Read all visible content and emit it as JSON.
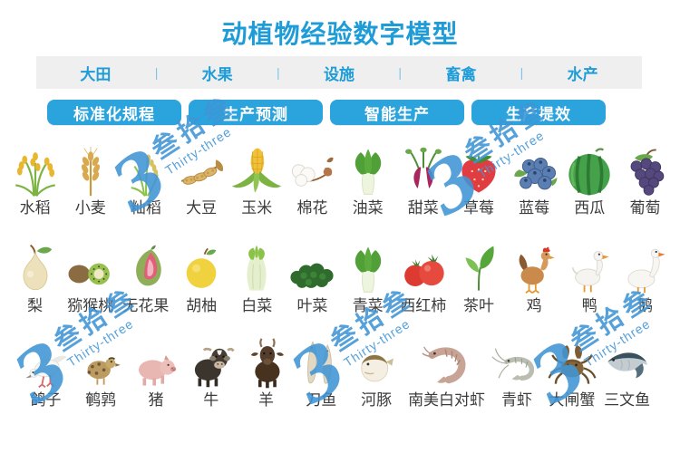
{
  "title": "动植物经验数字模型",
  "nav": {
    "divider": "|",
    "items": [
      "大田",
      "水果",
      "设施",
      "畜禽",
      "水产"
    ]
  },
  "buttons": [
    "标准化规程",
    "生产预测",
    "智能生产",
    "生产提效"
  ],
  "watermark": {
    "logo": "3",
    "text_cn": "叁拾叁",
    "text_en": "Thirty-three"
  },
  "rows": [
    {
      "items": [
        {
          "label": "水稻",
          "icon": "rice"
        },
        {
          "label": "小麦",
          "icon": "wheat"
        },
        {
          "label": "籼稻",
          "icon": "indica-rice"
        },
        {
          "label": "大豆",
          "icon": "soybean"
        },
        {
          "label": "玉米",
          "icon": "corn"
        },
        {
          "label": "棉花",
          "icon": "cotton"
        },
        {
          "label": "油菜",
          "icon": "bokchoy"
        },
        {
          "label": "甜菜",
          "icon": "beet"
        },
        {
          "label": "草莓",
          "icon": "strawberry"
        },
        {
          "label": "蓝莓",
          "icon": "blueberry"
        },
        {
          "label": "西瓜",
          "icon": "watermelon"
        },
        {
          "label": "葡萄",
          "icon": "grapes"
        }
      ]
    },
    {
      "items": [
        {
          "label": "梨",
          "icon": "pear"
        },
        {
          "label": "猕猴桃",
          "icon": "kiwi"
        },
        {
          "label": "无花果",
          "icon": "fig"
        },
        {
          "label": "胡柚",
          "icon": "pomelo"
        },
        {
          "label": "白菜",
          "icon": "napa-cabbage"
        },
        {
          "label": "叶菜",
          "icon": "leafy-greens"
        },
        {
          "label": "青菜",
          "icon": "bokchoy"
        },
        {
          "label": "西红柿",
          "icon": "tomato"
        },
        {
          "label": "茶叶",
          "icon": "tea-leaf"
        },
        {
          "label": "鸡",
          "icon": "chicken"
        },
        {
          "label": "鸭",
          "icon": "duck"
        },
        {
          "label": "鹅",
          "icon": "goose"
        }
      ]
    },
    {
      "items": [
        {
          "label": "鸽子",
          "icon": "pigeon"
        },
        {
          "label": "鹌鹑",
          "icon": "quail"
        },
        {
          "label": "猪",
          "icon": "pig"
        },
        {
          "label": "牛",
          "icon": "cow"
        },
        {
          "label": "羊",
          "icon": "goat"
        },
        {
          "label": "刀鱼",
          "icon": "knifefish"
        },
        {
          "label": "河豚",
          "icon": "pufferfish"
        },
        {
          "label": "南美白对虾",
          "icon": "white-shrimp",
          "wide": true
        },
        {
          "label": "青虾",
          "icon": "green-shrimp"
        },
        {
          "label": "大闸蟹",
          "icon": "crab"
        },
        {
          "label": "三文鱼",
          "icon": "salmon"
        }
      ]
    }
  ],
  "colors": {
    "accent": "#1E9CD8",
    "button_bg": "#2BA3DC",
    "navbar_bg": "#EFEFEF",
    "divider": "#7FC3E8",
    "label": "#3C3C3C",
    "watermark": "#4095D5"
  }
}
